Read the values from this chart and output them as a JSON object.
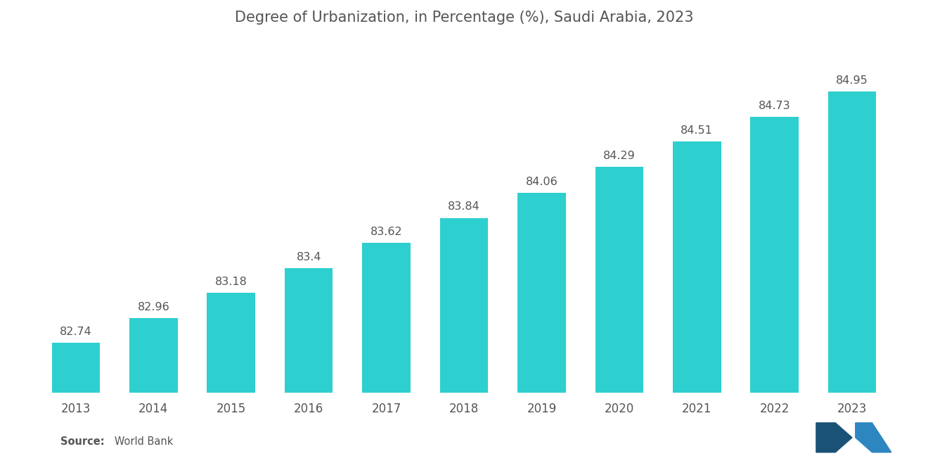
{
  "title": "Degree of Urbanization, in Percentage (%), Saudi Arabia, 2023",
  "years": [
    2013,
    2014,
    2015,
    2016,
    2017,
    2018,
    2019,
    2020,
    2021,
    2022,
    2023
  ],
  "values": [
    82.74,
    82.96,
    83.18,
    83.4,
    83.62,
    83.84,
    84.06,
    84.29,
    84.51,
    84.73,
    84.95
  ],
  "bar_color": "#2ECFCF",
  "background_color": "#FFFFFF",
  "title_fontsize": 15,
  "label_fontsize": 11.5,
  "tick_fontsize": 12,
  "source_bold": "Source:",
  "source_rest": "   World Bank",
  "ylim_min": 82.3,
  "ylim_max": 85.35,
  "bar_width": 0.62,
  "label_color": "#555555",
  "tick_color": "#555555"
}
